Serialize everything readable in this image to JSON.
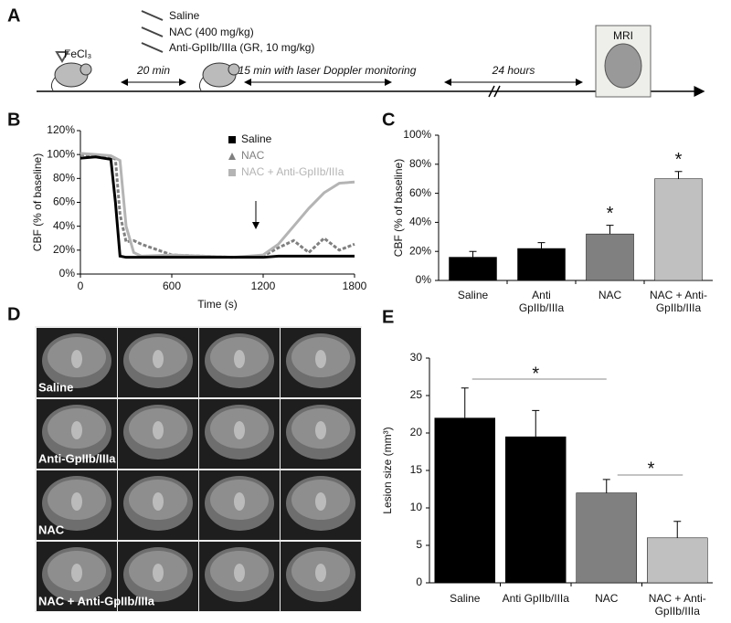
{
  "panel_labels": [
    "A",
    "B",
    "C",
    "D",
    "E"
  ],
  "timeline": {
    "agents": [
      "Saline",
      "NAC (400 mg/kg)",
      "Anti-GpIIb/IIIa (GR, 10 mg/kg)"
    ],
    "fecl3": "FeCl₃",
    "intervals": [
      "20 min",
      "15 min with laser Doppler monitoring",
      "24 hours"
    ],
    "mri": "MRI"
  },
  "mri_rows": [
    "Saline",
    "Anti-GpIIb/IIIa",
    "NAC",
    "NAC + Anti-GpIIb/IIIa"
  ],
  "chart_data": [
    {
      "type": "line",
      "x_label": "Time (s)",
      "y_label": "CBF (% of baseline)",
      "x": [
        0,
        100,
        200,
        230,
        260,
        300,
        350,
        400,
        600,
        800,
        1000,
        1200,
        1300,
        1400,
        1500,
        1600,
        1700,
        1800
      ],
      "series": [
        {
          "name": "Saline",
          "color": "#000000",
          "values": [
            97,
            98,
            96,
            60,
            15,
            14,
            14,
            14,
            14,
            14,
            14,
            14,
            15,
            15,
            15,
            15,
            15,
            15
          ]
        },
        {
          "name": "NAC",
          "color": "#808080",
          "values": [
            100,
            99,
            98,
            96,
            50,
            27,
            28,
            25,
            16,
            15,
            14,
            15,
            22,
            28,
            18,
            30,
            20,
            25
          ]
        },
        {
          "name": "NAC + Anti-GpIIb/IIIa",
          "color": "#b4b4b4",
          "values": [
            101,
            100,
            99,
            97,
            95,
            40,
            18,
            15,
            16,
            15,
            14,
            16,
            25,
            40,
            55,
            68,
            76,
            77
          ]
        }
      ],
      "xlim": [
        0,
        1800
      ],
      "xticks": [
        0,
        600,
        1200,
        1800
      ],
      "ylim": [
        0,
        120
      ],
      "yticks": [
        {
          "value": 0,
          "label": "0%"
        },
        {
          "value": 20,
          "label": "20%"
        },
        {
          "value": 40,
          "label": "40%"
        },
        {
          "value": 60,
          "label": "60%"
        },
        {
          "value": 80,
          "label": "80%"
        },
        {
          "value": 100,
          "label": "100%"
        },
        {
          "value": 120,
          "label": "120%"
        }
      ]
    },
    {
      "type": "bar",
      "y_label": "CBF (% of baseline)",
      "categories": [
        "Saline",
        "Anti GpIIb/IIIa",
        "NAC",
        "NAC + Anti-GpIIb/IIIa"
      ],
      "values": [
        16,
        22,
        32,
        70
      ],
      "errors": [
        4,
        4,
        6,
        5
      ],
      "colors": [
        "#000000",
        "#000000",
        "#808080",
        "#c0c0c0"
      ],
      "annotations": [
        "*",
        "*"
      ],
      "ylim": [
        0,
        100
      ],
      "yticks": [
        {
          "value": 0,
          "label": "0%"
        },
        {
          "value": 20,
          "label": "20%"
        },
        {
          "value": 40,
          "label": "40%"
        },
        {
          "value": 60,
          "label": "60%"
        },
        {
          "value": 80,
          "label": "80%"
        },
        {
          "value": 100,
          "label": "100%"
        }
      ]
    },
    {
      "type": "bar",
      "y_label": "Lesion size (mm³)",
      "categories": [
        "Saline",
        "Anti GpIIb/IIIa",
        "NAC",
        "NAC + Anti-GpIIb/IIIa"
      ],
      "values": [
        22,
        19.5,
        12,
        6
      ],
      "errors": [
        4,
        3.5,
        1.8,
        2.2
      ],
      "colors": [
        "#000000",
        "#000000",
        "#808080",
        "#c0c0c0"
      ],
      "annotations": [
        "*",
        "*"
      ],
      "ylim": [
        0,
        30
      ],
      "yticks": [
        0,
        5,
        10,
        15,
        20,
        25,
        30
      ]
    }
  ]
}
